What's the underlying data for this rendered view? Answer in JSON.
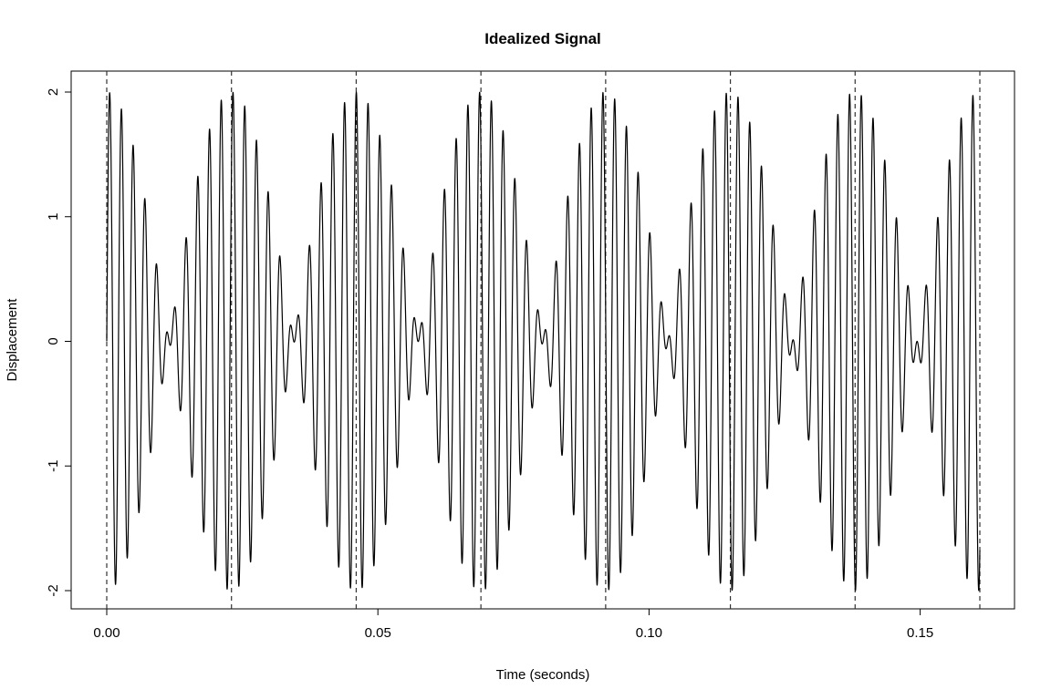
{
  "chart_data": {
    "type": "line",
    "title": "Idealized Signal",
    "xlabel": "Time (seconds)",
    "ylabel": "Displacement",
    "xlim": [
      0,
      0.161
    ],
    "ylim": [
      -2.0,
      2.0
    ],
    "x_ticks": [
      {
        "value": 0.0,
        "label": "0.00"
      },
      {
        "value": 0.05,
        "label": "0.05"
      },
      {
        "value": 0.1,
        "label": "0.10"
      },
      {
        "value": 0.15,
        "label": "0.15"
      }
    ],
    "y_ticks": [
      {
        "value": -2,
        "label": "-2"
      },
      {
        "value": -1,
        "label": "-1"
      },
      {
        "value": 0,
        "label": "0"
      },
      {
        "value": 1,
        "label": "1"
      },
      {
        "value": 2,
        "label": "2"
      }
    ],
    "vertical_dashed_lines": [
      0.0,
      0.023,
      0.046,
      0.069,
      0.092,
      0.115,
      0.138,
      0.161
    ],
    "series": [
      {
        "function": "sin(2*pi*440*t) + sin(2*pi*483.5*t)",
        "x_start": 0,
        "x_end": 0.161,
        "color": "#000000"
      }
    ],
    "grid": false
  }
}
